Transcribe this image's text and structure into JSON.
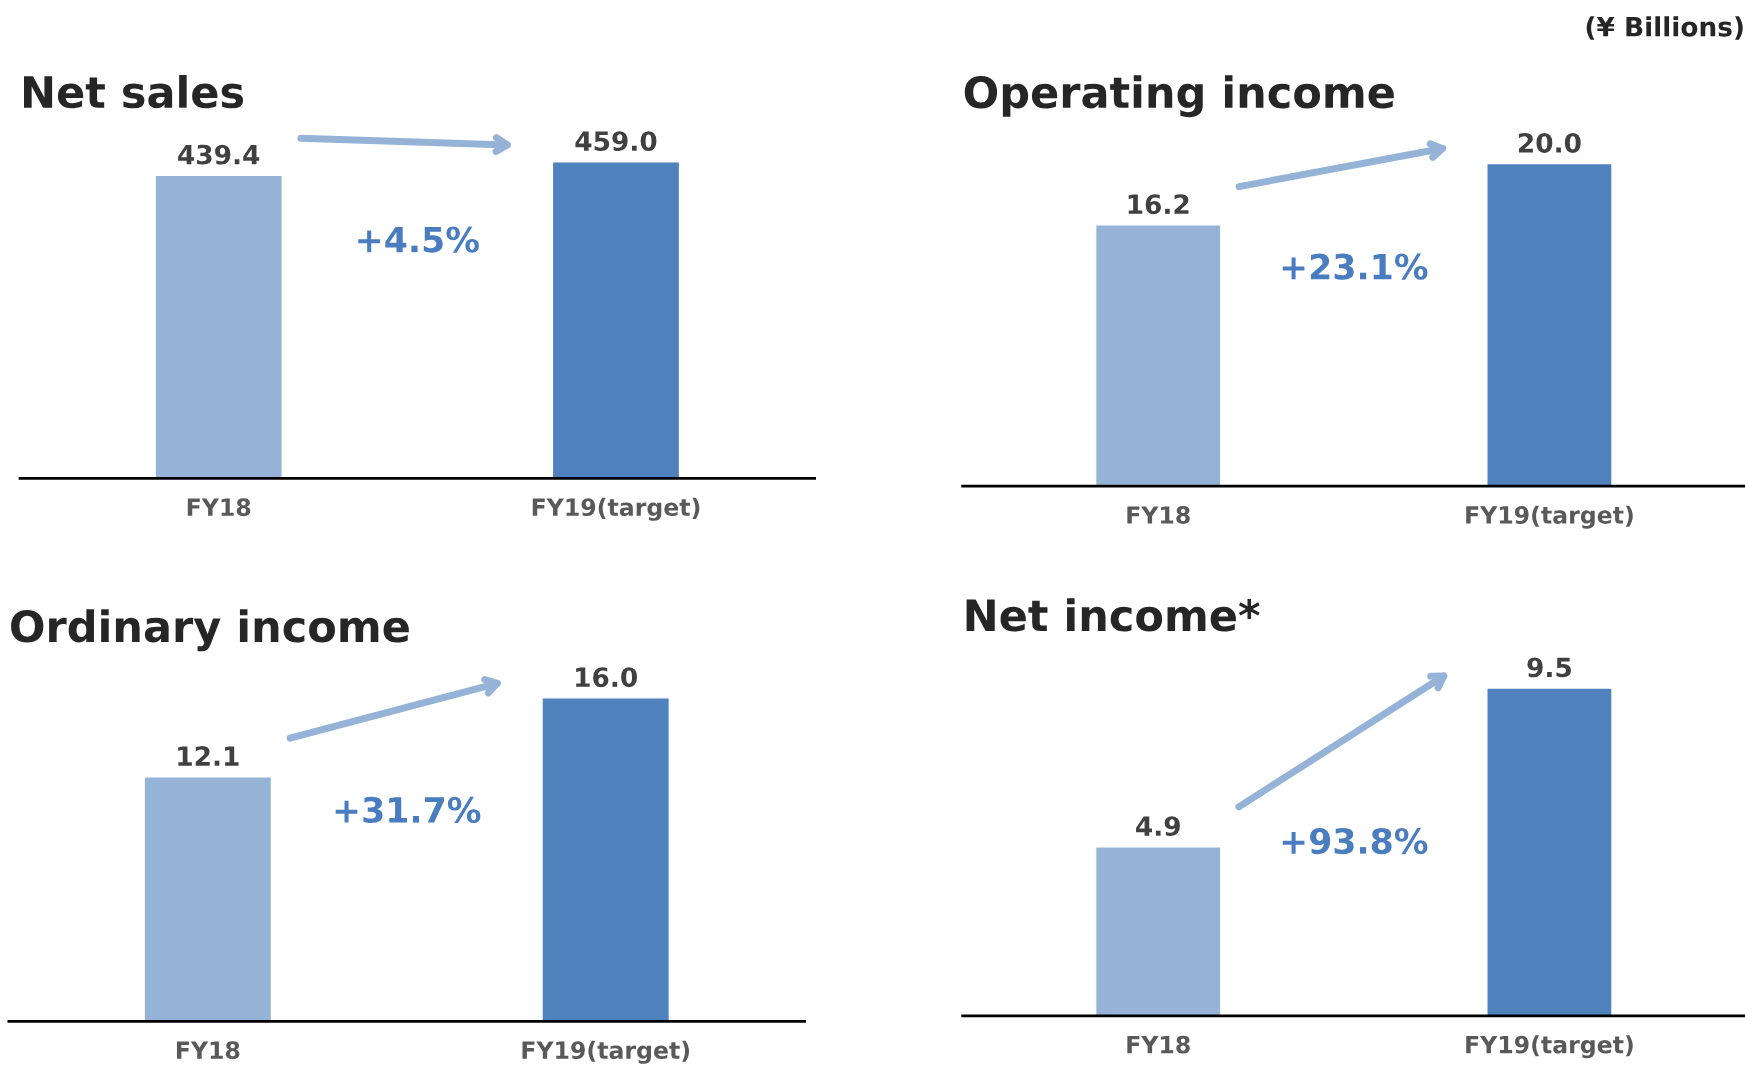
{
  "chart_data": [
    {
      "type": "bar",
      "title": "Net sales",
      "categories": [
        "FY18",
        "FY19(target)"
      ],
      "values": [
        439.4,
        459.0
      ],
      "value_labels": [
        "439.4",
        "459.0"
      ],
      "colors": [
        "#95b3d7",
        "#4f81bd"
      ],
      "tick_labels": "x",
      "annotations": [
        "+4.5%"
      ]
    },
    {
      "type": "bar",
      "title": "Operating income",
      "categories": [
        "FY18",
        "FY19(target)"
      ],
      "values": [
        16.2,
        20.0
      ],
      "value_labels": [
        "16.2",
        "20.0"
      ],
      "colors": [
        "#95b3d7",
        "#4f81bd"
      ],
      "tick_labels": "x",
      "annotations": [
        "+23.1%",
        "(¥ Billions)"
      ]
    },
    {
      "type": "bar",
      "title": "Ordinary income",
      "categories": [
        "FY18",
        "FY19(target)"
      ],
      "values": [
        12.1,
        16.0
      ],
      "value_labels": [
        "12.1",
        "16.0"
      ],
      "colors": [
        "#95b3d7",
        "#4f81bd"
      ],
      "tick_labels": "x",
      "annotations": [
        "+31.7%"
      ]
    },
    {
      "type": "bar",
      "title": "Net income*",
      "categories": [
        "FY18",
        "FY19(target)"
      ],
      "values": [
        4.9,
        9.5
      ],
      "value_labels": [
        "4.9",
        "9.5"
      ],
      "colors": [
        "#95b3d7",
        "#4f81bd"
      ],
      "tick_labels": "x",
      "annotations": [
        "+93.8%"
      ]
    }
  ]
}
